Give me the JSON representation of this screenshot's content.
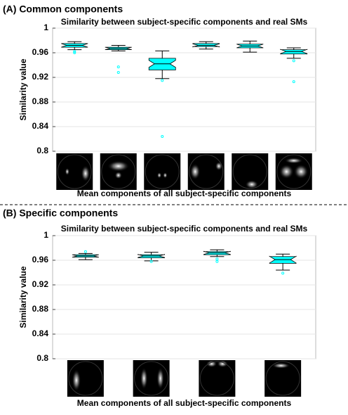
{
  "chart_data": [
    {
      "type": "box",
      "panel": "(A) Common components",
      "title": "Similarity between subject-specific components and real SMs",
      "y_label": "Similarity value",
      "x_label": "Mean components of all subject-specific components",
      "ylim": [
        0.8,
        1
      ],
      "yticks": [
        0.8,
        0.84,
        0.88,
        0.92,
        0.96,
        1
      ],
      "grid": true,
      "color": "#00ffff",
      "boxes": [
        {
          "whislo": 0.965,
          "q1": 0.969,
          "med": 0.972,
          "q3": 0.975,
          "whishi": 0.978,
          "fliers": [
            0.96,
            0.962
          ]
        },
        {
          "whislo": 0.963,
          "q1": 0.965,
          "med": 0.967,
          "q3": 0.969,
          "whishi": 0.972,
          "fliers": [
            0.937,
            0.928
          ]
        },
        {
          "whislo": 0.918,
          "q1": 0.932,
          "med": 0.942,
          "q3": 0.951,
          "whishi": 0.963,
          "fliers": [
            0.915,
            0.824
          ]
        },
        {
          "whislo": 0.966,
          "q1": 0.97,
          "med": 0.972,
          "q3": 0.975,
          "whishi": 0.978,
          "fliers": []
        },
        {
          "whislo": 0.961,
          "q1": 0.968,
          "med": 0.971,
          "q3": 0.974,
          "whishi": 0.979,
          "fliers": []
        },
        {
          "whislo": 0.951,
          "q1": 0.958,
          "med": 0.962,
          "q3": 0.965,
          "whishi": 0.968,
          "fliers": [
            0.947,
            0.913
          ]
        }
      ]
    },
    {
      "type": "box",
      "panel": "(B) Specific components",
      "title": "Similarity between subject-specific components and real SMs",
      "y_label": "Similarity value",
      "x_label": "Mean components of all subject-specific components",
      "ylim": [
        0.8,
        1
      ],
      "yticks": [
        0.8,
        0.84,
        0.88,
        0.92,
        0.96,
        1
      ],
      "grid": true,
      "color": "#00ffff",
      "boxes": [
        {
          "whislo": 0.961,
          "q1": 0.965,
          "med": 0.967,
          "q3": 0.969,
          "whishi": 0.971,
          "fliers": [
            0.974
          ]
        },
        {
          "whislo": 0.959,
          "q1": 0.964,
          "med": 0.967,
          "q3": 0.969,
          "whishi": 0.973,
          "fliers": [
            0.958
          ]
        },
        {
          "whislo": 0.966,
          "q1": 0.969,
          "med": 0.972,
          "q3": 0.974,
          "whishi": 0.977,
          "fliers": [
            0.962,
            0.958
          ]
        },
        {
          "whislo": 0.944,
          "q1": 0.955,
          "med": 0.961,
          "q3": 0.966,
          "whishi": 0.97,
          "fliers": [
            0.939
          ]
        }
      ]
    }
  ]
}
